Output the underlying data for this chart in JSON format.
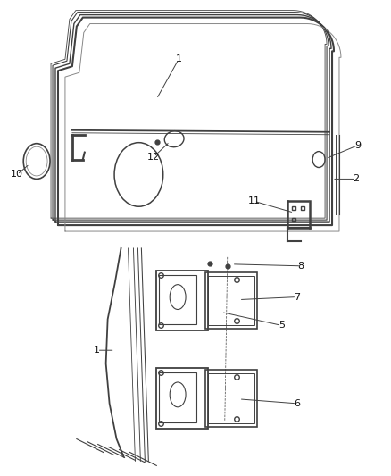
{
  "bg_color": "#ffffff",
  "line_color": "#404040",
  "label_color": "#111111",
  "fig_width": 4.38,
  "fig_height": 5.33,
  "dpi": 100
}
